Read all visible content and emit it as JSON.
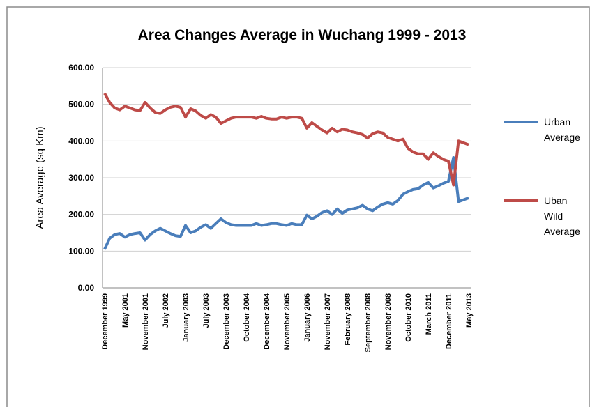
{
  "chart_data": {
    "type": "line",
    "title": "Area Changes Average in Wuchang 1999 - 2013",
    "y_label": "Area Average (sq Km)",
    "categories": [
      "December 1999",
      null,
      null,
      null,
      "May 2001",
      null,
      null,
      null,
      "November 2001",
      null,
      null,
      null,
      "July 2002",
      null,
      null,
      null,
      "January 2003",
      null,
      null,
      null,
      "July 2003",
      null,
      null,
      null,
      "December 2003",
      null,
      null,
      null,
      "October 2004",
      null,
      null,
      null,
      "December 2004",
      null,
      null,
      null,
      "November 2005",
      null,
      null,
      null,
      "January 2006",
      null,
      null,
      null,
      "November 2007",
      null,
      null,
      null,
      "February 2008",
      null,
      null,
      null,
      "September 2008",
      null,
      null,
      null,
      "November 2008",
      null,
      null,
      null,
      "October 2010",
      null,
      null,
      null,
      "March 2011",
      null,
      null,
      null,
      "December 2011",
      null,
      null,
      null,
      "May 2013"
    ],
    "series": [
      {
        "name": "Urban Average",
        "color": "#4a7ebb",
        "values": [
          105,
          135,
          145,
          148,
          138,
          145,
          148,
          150,
          130,
          145,
          155,
          162,
          155,
          148,
          142,
          140,
          170,
          150,
          155,
          165,
          172,
          162,
          175,
          188,
          178,
          172,
          170,
          170,
          170,
          170,
          175,
          170,
          172,
          175,
          175,
          172,
          170,
          175,
          172,
          172,
          198,
          188,
          195,
          205,
          210,
          200,
          215,
          203,
          212,
          215,
          218,
          225,
          215,
          210,
          220,
          228,
          232,
          228,
          238,
          255,
          262,
          268,
          270,
          280,
          287,
          272,
          278,
          285,
          290,
          355,
          235,
          240,
          245
        ]
      },
      {
        "name": "Uban Wild Average",
        "color": "#be4b48",
        "values": [
          530,
          505,
          490,
          485,
          495,
          490,
          485,
          483,
          505,
          490,
          478,
          475,
          485,
          492,
          495,
          492,
          465,
          488,
          482,
          470,
          462,
          472,
          465,
          448,
          455,
          462,
          465,
          465,
          465,
          465,
          462,
          467,
          462,
          460,
          460,
          465,
          462,
          465,
          465,
          462,
          435,
          450,
          440,
          430,
          422,
          435,
          425,
          432,
          430,
          425,
          422,
          418,
          408,
          420,
          425,
          422,
          410,
          405,
          400,
          405,
          380,
          370,
          365,
          365,
          350,
          368,
          358,
          350,
          345,
          280,
          400,
          395,
          390
        ]
      }
    ],
    "ylim": [
      0,
      600
    ],
    "yticks": [
      {
        "value": 0,
        "label": "0.00"
      },
      {
        "value": 100,
        "label": "100.00"
      },
      {
        "value": 200,
        "label": "200.00"
      },
      {
        "value": 300,
        "label": "300.00"
      },
      {
        "value": 400,
        "label": "400.00"
      },
      {
        "value": 500,
        "label": "500.00"
      },
      {
        "value": 600,
        "label": "600.00"
      }
    ],
    "grid": true,
    "legend": "right"
  }
}
